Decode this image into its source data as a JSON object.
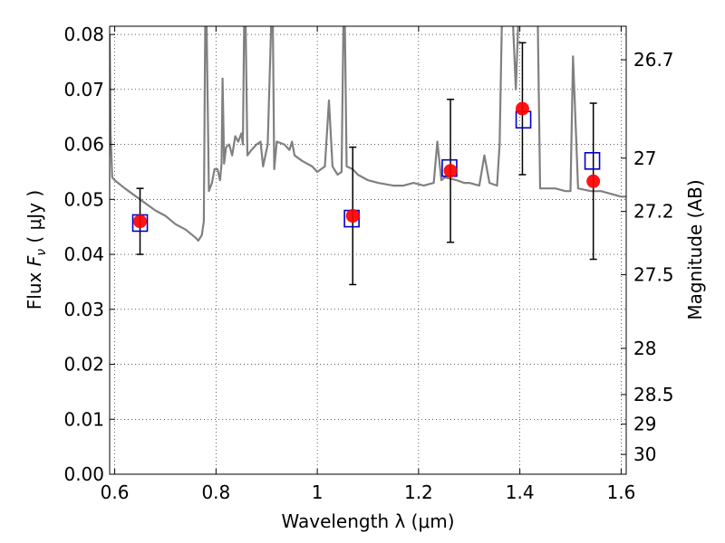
{
  "chart_data": {
    "type": "scatter",
    "xlabel": "Wavelength  λ (μm)",
    "ylabel_prefix": "Flux  ",
    "ylabel_math": "F",
    "ylabel_sub": "ν",
    "ylabel_suffix": "  (  μJy  )",
    "y2label": "Magnitude (AB)",
    "xlim": [
      0.59,
      1.61
    ],
    "ylim": [
      0.0,
      0.0815
    ],
    "grid": true,
    "x_ticks": [
      {
        "value": 0.6,
        "label": "0.6"
      },
      {
        "value": 0.8,
        "label": "0.8"
      },
      {
        "value": 1.0,
        "label": "1"
      },
      {
        "value": 1.2,
        "label": "1.2"
      },
      {
        "value": 1.4,
        "label": "1.4"
      },
      {
        "value": 1.6,
        "label": "1.6"
      }
    ],
    "y_ticks": [
      {
        "value": 0.0,
        "label": "0.00"
      },
      {
        "value": 0.01,
        "label": "0.01"
      },
      {
        "value": 0.02,
        "label": "0.02"
      },
      {
        "value": 0.03,
        "label": "0.03"
      },
      {
        "value": 0.04,
        "label": "0.04"
      },
      {
        "value": 0.05,
        "label": "0.05"
      },
      {
        "value": 0.06,
        "label": "0.06"
      },
      {
        "value": 0.07,
        "label": "0.07"
      },
      {
        "value": 0.08,
        "label": "0.08"
      }
    ],
    "y2_ticks": [
      {
        "mag": 26.7,
        "flux": 0.0754,
        "label": "26.7"
      },
      {
        "mag": 27.0,
        "flux": 0.0575,
        "label": "27"
      },
      {
        "mag": 27.2,
        "flux": 0.0478,
        "label": "27.2"
      },
      {
        "mag": 27.5,
        "flux": 0.0363,
        "label": "27.5"
      },
      {
        "mag": 28.0,
        "flux": 0.0229,
        "label": "28"
      },
      {
        "mag": 28.5,
        "flux": 0.0145,
        "label": "28.5"
      },
      {
        "mag": 29.0,
        "flux": 0.0091,
        "label": "29"
      },
      {
        "mag": 30.0,
        "flux": 0.0036,
        "label": "30"
      }
    ],
    "model_spectrum": {
      "color": "#808080",
      "points": [
        [
          0.59,
          0.08
        ],
        [
          0.592,
          0.062
        ],
        [
          0.595,
          0.054
        ],
        [
          0.6,
          0.0535
        ],
        [
          0.62,
          0.052
        ],
        [
          0.65,
          0.05
        ],
        [
          0.68,
          0.048
        ],
        [
          0.7,
          0.047
        ],
        [
          0.72,
          0.0455
        ],
        [
          0.74,
          0.0445
        ],
        [
          0.76,
          0.043
        ],
        [
          0.765,
          0.0425
        ],
        [
          0.772,
          0.0435
        ],
        [
          0.776,
          0.046
        ],
        [
          0.779,
          0.085
        ],
        [
          0.781,
          0.085
        ],
        [
          0.786,
          0.0515
        ],
        [
          0.792,
          0.053
        ],
        [
          0.797,
          0.0555
        ],
        [
          0.803,
          0.0555
        ],
        [
          0.808,
          0.0535
        ],
        [
          0.811,
          0.0565
        ],
        [
          0.813,
          0.072
        ],
        [
          0.816,
          0.0565
        ],
        [
          0.82,
          0.0595
        ],
        [
          0.826,
          0.06
        ],
        [
          0.832,
          0.058
        ],
        [
          0.838,
          0.0615
        ],
        [
          0.844,
          0.0605
        ],
        [
          0.85,
          0.062
        ],
        [
          0.853,
          0.06
        ],
        [
          0.856,
          0.085
        ],
        [
          0.858,
          0.085
        ],
        [
          0.862,
          0.058
        ],
        [
          0.87,
          0.059
        ],
        [
          0.88,
          0.06
        ],
        [
          0.888,
          0.0605
        ],
        [
          0.893,
          0.056
        ],
        [
          0.902,
          0.06
        ],
        [
          0.91,
          0.085
        ],
        [
          0.912,
          0.085
        ],
        [
          0.915,
          0.0555
        ],
        [
          0.92,
          0.0605
        ],
        [
          0.935,
          0.06
        ],
        [
          0.945,
          0.059
        ],
        [
          0.95,
          0.0605
        ],
        [
          0.955,
          0.058
        ],
        [
          0.97,
          0.057
        ],
        [
          0.99,
          0.056
        ],
        [
          1.0,
          0.055
        ],
        [
          1.015,
          0.056
        ],
        [
          1.023,
          0.068
        ],
        [
          1.03,
          0.056
        ],
        [
          1.04,
          0.0545
        ],
        [
          1.048,
          0.055
        ],
        [
          1.052,
          0.085
        ],
        [
          1.054,
          0.085
        ],
        [
          1.058,
          0.056
        ],
        [
          1.07,
          0.0555
        ],
        [
          1.08,
          0.0545
        ],
        [
          1.1,
          0.0535
        ],
        [
          1.12,
          0.053
        ],
        [
          1.15,
          0.0525
        ],
        [
          1.17,
          0.0525
        ],
        [
          1.19,
          0.053
        ],
        [
          1.21,
          0.0525
        ],
        [
          1.23,
          0.053
        ],
        [
          1.237,
          0.0605
        ],
        [
          1.245,
          0.0535
        ],
        [
          1.252,
          0.054
        ],
        [
          1.275,
          0.0535
        ],
        [
          1.29,
          0.053
        ],
        [
          1.3,
          0.053
        ],
        [
          1.32,
          0.0525
        ],
        [
          1.33,
          0.058
        ],
        [
          1.34,
          0.053
        ],
        [
          1.355,
          0.0525
        ],
        [
          1.36,
          0.06
        ],
        [
          1.365,
          0.085
        ],
        [
          1.385,
          0.085
        ],
        [
          1.392,
          0.07
        ],
        [
          1.398,
          0.085
        ],
        [
          1.41,
          0.085
        ],
        [
          1.425,
          0.085
        ],
        [
          1.435,
          0.085
        ],
        [
          1.44,
          0.052
        ],
        [
          1.45,
          0.052
        ],
        [
          1.47,
          0.052
        ],
        [
          1.49,
          0.0515
        ],
        [
          1.5,
          0.0515
        ],
        [
          1.505,
          0.076
        ],
        [
          1.515,
          0.052
        ],
        [
          1.54,
          0.0515
        ],
        [
          1.56,
          0.0515
        ],
        [
          1.58,
          0.051
        ],
        [
          1.6,
          0.0505
        ],
        [
          1.61,
          0.0505
        ]
      ]
    },
    "observed": {
      "color": "#000000",
      "points": [
        {
          "x": 0.65,
          "y": 0.046,
          "err": 0.006
        },
        {
          "x": 1.07,
          "y": 0.047,
          "err": 0.0125
        },
        {
          "x": 1.263,
          "y": 0.0552,
          "err": 0.013
        },
        {
          "x": 1.405,
          "y": 0.0665,
          "err": 0.012
        },
        {
          "x": 1.545,
          "y": 0.0533,
          "err": 0.0142
        }
      ]
    },
    "model_photometry": {
      "color": "#0000cc",
      "points": [
        {
          "x": 0.65,
          "y": 0.0457
        },
        {
          "x": 1.068,
          "y": 0.0465
        },
        {
          "x": 1.261,
          "y": 0.0557
        },
        {
          "x": 1.407,
          "y": 0.0645
        },
        {
          "x": 1.543,
          "y": 0.057
        }
      ]
    },
    "measured_color": "#ff0000"
  }
}
